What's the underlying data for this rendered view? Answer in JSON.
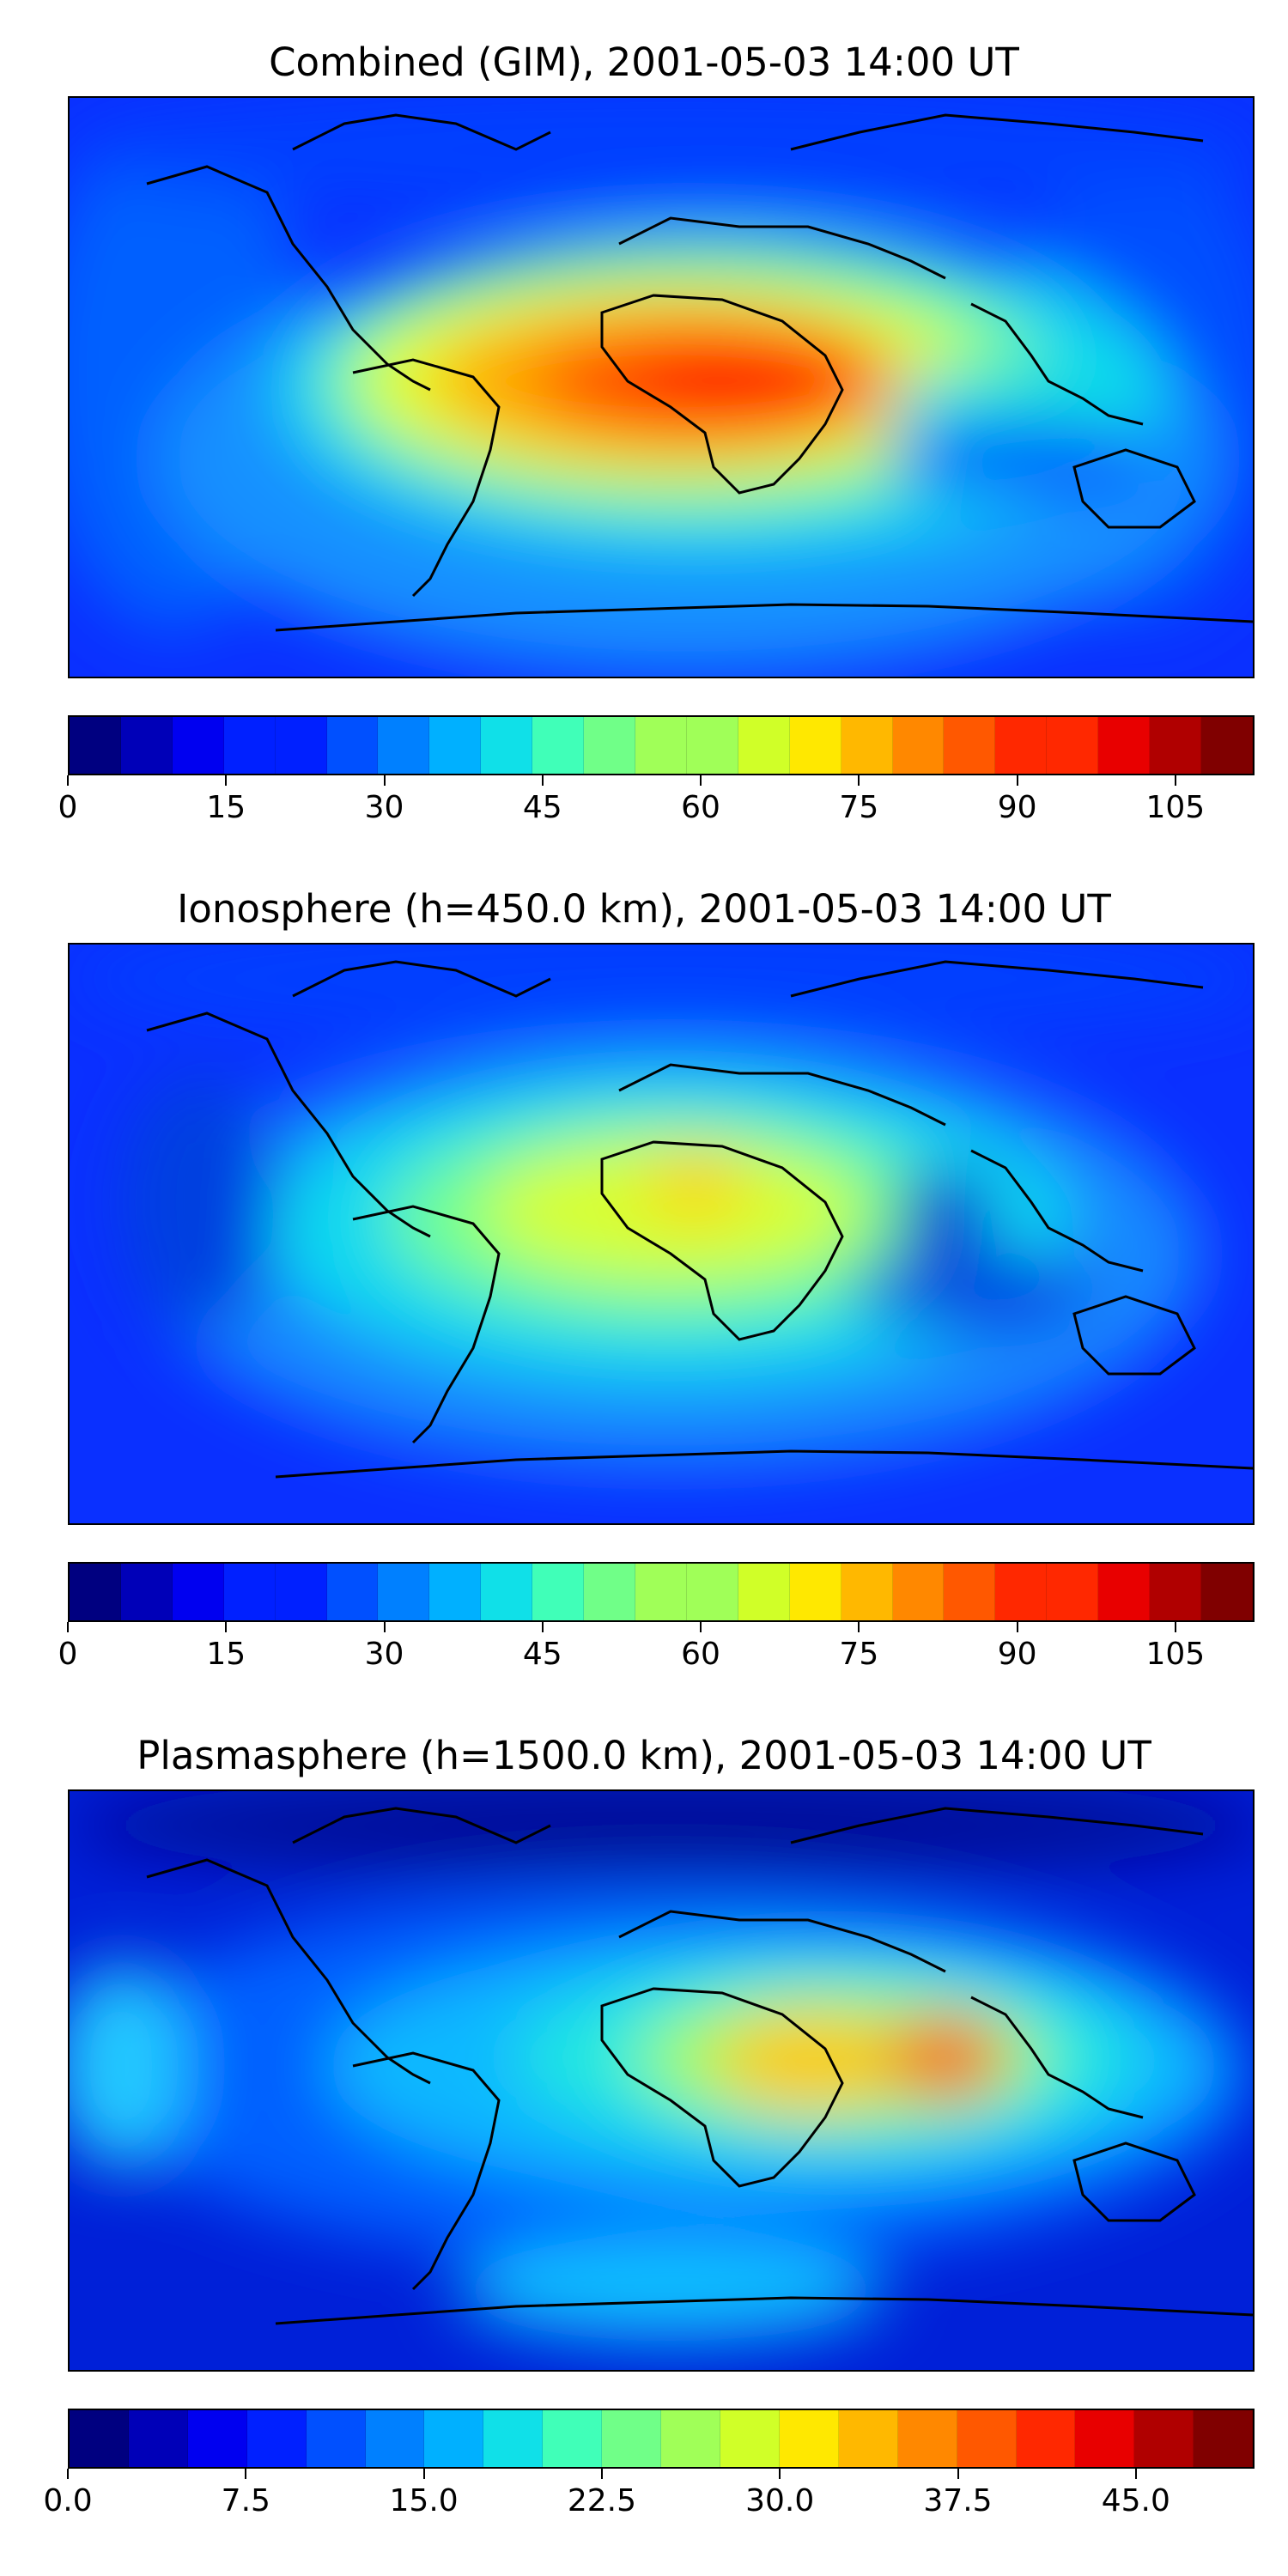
{
  "maps": [
    {
      "title": "Combined (GIM), 2001-05-03 14:00 UT",
      "colorbar": {
        "min": 0,
        "max": 112.5,
        "levels": 23,
        "tick_values": [
          0,
          15,
          30,
          45,
          60,
          75,
          90,
          105
        ],
        "tick_labels": [
          "0",
          "15",
          "30",
          "45",
          "60",
          "75",
          "90",
          "105"
        ]
      }
    },
    {
      "title": "Ionosphere  (h=450.0 km), 2001-05-03 14:00 UT",
      "colorbar": {
        "min": 0,
        "max": 112.5,
        "levels": 23,
        "tick_values": [
          0,
          15,
          30,
          45,
          60,
          75,
          90,
          105
        ],
        "tick_labels": [
          "0",
          "15",
          "30",
          "45",
          "60",
          "75",
          "90",
          "105"
        ]
      }
    },
    {
      "title": "Plasmasphere (h=1500.0 km), 2001-05-03 14:00 UT",
      "colorbar": {
        "min": 0,
        "max": 50,
        "levels": 20,
        "tick_values": [
          0,
          7.5,
          15,
          22.5,
          30,
          37.5,
          45
        ],
        "tick_labels": [
          "0.0",
          "7.5",
          "15.0",
          "22.5",
          "30.0",
          "37.5",
          "45.0"
        ]
      }
    }
  ],
  "colors": {
    "jet": [
      "#000080",
      "#0000b8",
      "#0000f0",
      "#0020ff",
      "#0050ff",
      "#0080ff",
      "#00b0ff",
      "#10e0e8",
      "#40ffb8",
      "#70ff88",
      "#a0ff58",
      "#d0ff28",
      "#ffe800",
      "#ffb800",
      "#ff8800",
      "#ff5800",
      "#ff2800",
      "#e80000",
      "#b00000",
      "#800000"
    ],
    "coast": "#000000"
  }
}
